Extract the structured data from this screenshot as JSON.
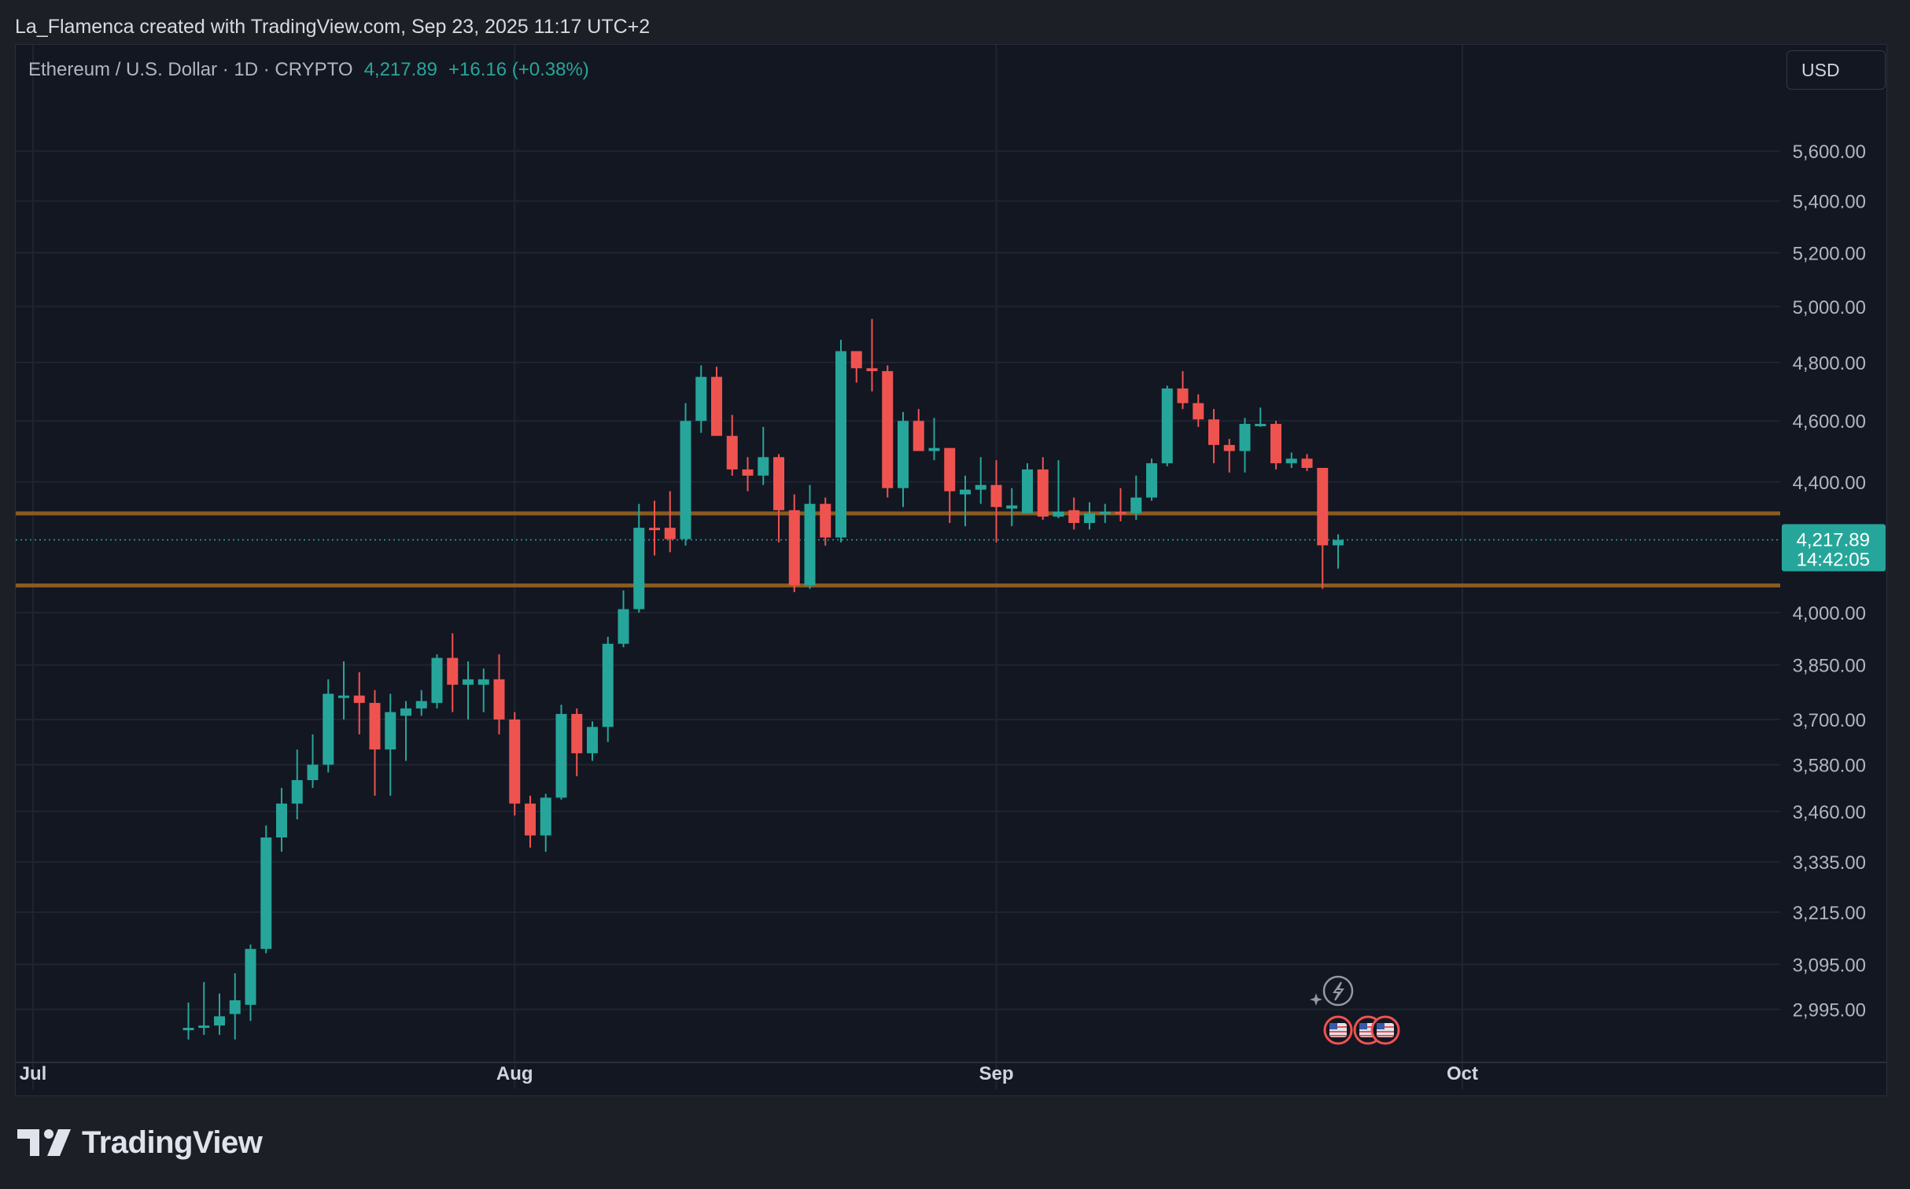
{
  "header": {
    "attribution": "La_Flamenca created with TradingView.com, Sep 23, 2025 11:17 UTC+2"
  },
  "legend": {
    "symbol": "Ethereum / U.S. Dollar · 1D · CRYPTO",
    "price": "4,217.89",
    "change": "+16.16 (+0.38%)"
  },
  "currency": "USD",
  "brand": "TradingView",
  "colors": {
    "up": "#26a69a",
    "down": "#ef5350",
    "level_line": "#8a5a22",
    "background": "#131722",
    "grid": "#1f2431"
  },
  "price_label": {
    "price": "4,217.89",
    "countdown": "14:42:05"
  },
  "chart_data": {
    "type": "candlestick",
    "title": "Ethereum / U.S. Dollar · 1D · CRYPTO",
    "y_scale": "log",
    "y_ticks": [
      "5,600.00",
      "5,400.00",
      "5,200.00",
      "5,000.00",
      "4,800.00",
      "4,600.00",
      "4,400.00",
      "4,000.00",
      "3,850.00",
      "3,700.00",
      "3,580.00",
      "3,460.00",
      "3,335.00",
      "3,215.00",
      "3,095.00",
      "2,995.00"
    ],
    "x_ticks": [
      {
        "label": "Jul",
        "date": "2025-07-01"
      },
      {
        "label": "Aug",
        "date": "2025-08-01"
      },
      {
        "label": "Sep",
        "date": "2025-09-01"
      },
      {
        "label": "Oct",
        "date": "2025-10-01"
      }
    ],
    "horizontal_levels": [
      4300,
      4080
    ],
    "last_price": 4217.89,
    "ohlc": [
      {
        "date": "2025-07-11",
        "o": 2950,
        "h": 3010,
        "l": 2930,
        "c": 2955
      },
      {
        "date": "2025-07-12",
        "o": 2955,
        "h": 3055,
        "l": 2940,
        "c": 2960
      },
      {
        "date": "2025-07-13",
        "o": 2960,
        "h": 3030,
        "l": 2940,
        "c": 2980
      },
      {
        "date": "2025-07-14",
        "o": 2985,
        "h": 3075,
        "l": 2930,
        "c": 3015
      },
      {
        "date": "2025-07-15",
        "o": 3005,
        "h": 3140,
        "l": 2970,
        "c": 3130
      },
      {
        "date": "2025-07-16",
        "o": 3130,
        "h": 3425,
        "l": 3120,
        "c": 3395
      },
      {
        "date": "2025-07-17",
        "o": 3395,
        "h": 3520,
        "l": 3360,
        "c": 3480
      },
      {
        "date": "2025-07-18",
        "o": 3480,
        "h": 3620,
        "l": 3440,
        "c": 3540
      },
      {
        "date": "2025-07-19",
        "o": 3540,
        "h": 3660,
        "l": 3520,
        "c": 3580
      },
      {
        "date": "2025-07-20",
        "o": 3580,
        "h": 3810,
        "l": 3560,
        "c": 3770
      },
      {
        "date": "2025-07-21",
        "o": 3760,
        "h": 3860,
        "l": 3700,
        "c": 3765
      },
      {
        "date": "2025-07-22",
        "o": 3765,
        "h": 3830,
        "l": 3660,
        "c": 3745
      },
      {
        "date": "2025-07-23",
        "o": 3745,
        "h": 3780,
        "l": 3500,
        "c": 3620
      },
      {
        "date": "2025-07-24",
        "o": 3620,
        "h": 3770,
        "l": 3500,
        "c": 3720
      },
      {
        "date": "2025-07-25",
        "o": 3710,
        "h": 3750,
        "l": 3590,
        "c": 3730
      },
      {
        "date": "2025-07-26",
        "o": 3730,
        "h": 3780,
        "l": 3710,
        "c": 3750
      },
      {
        "date": "2025-07-27",
        "o": 3745,
        "h": 3880,
        "l": 3730,
        "c": 3870
      },
      {
        "date": "2025-07-28",
        "o": 3870,
        "h": 3940,
        "l": 3720,
        "c": 3795
      },
      {
        "date": "2025-07-29",
        "o": 3795,
        "h": 3860,
        "l": 3700,
        "c": 3810
      },
      {
        "date": "2025-07-30",
        "o": 3795,
        "h": 3840,
        "l": 3720,
        "c": 3810
      },
      {
        "date": "2025-07-31",
        "o": 3810,
        "h": 3880,
        "l": 3660,
        "c": 3700
      },
      {
        "date": "2025-08-01",
        "o": 3700,
        "h": 3720,
        "l": 3450,
        "c": 3480
      },
      {
        "date": "2025-08-02",
        "o": 3480,
        "h": 3500,
        "l": 3370,
        "c": 3400
      },
      {
        "date": "2025-08-03",
        "o": 3400,
        "h": 3505,
        "l": 3360,
        "c": 3495
      },
      {
        "date": "2025-08-04",
        "o": 3495,
        "h": 3740,
        "l": 3490,
        "c": 3715
      },
      {
        "date": "2025-08-05",
        "o": 3715,
        "h": 3730,
        "l": 3550,
        "c": 3610
      },
      {
        "date": "2025-08-06",
        "o": 3610,
        "h": 3695,
        "l": 3590,
        "c": 3680
      },
      {
        "date": "2025-08-07",
        "o": 3680,
        "h": 3930,
        "l": 3640,
        "c": 3910
      },
      {
        "date": "2025-08-08",
        "o": 3910,
        "h": 4065,
        "l": 3900,
        "c": 4010
      },
      {
        "date": "2025-08-09",
        "o": 4010,
        "h": 4330,
        "l": 4000,
        "c": 4255
      },
      {
        "date": "2025-08-10",
        "o": 4255,
        "h": 4340,
        "l": 4170,
        "c": 4250
      },
      {
        "date": "2025-08-11",
        "o": 4255,
        "h": 4370,
        "l": 4180,
        "c": 4220
      },
      {
        "date": "2025-08-12",
        "o": 4220,
        "h": 4660,
        "l": 4200,
        "c": 4600
      },
      {
        "date": "2025-08-13",
        "o": 4600,
        "h": 4790,
        "l": 4560,
        "c": 4750
      },
      {
        "date": "2025-08-14",
        "o": 4750,
        "h": 4785,
        "l": 4550,
        "c": 4550
      },
      {
        "date": "2025-08-15",
        "o": 4550,
        "h": 4620,
        "l": 4420,
        "c": 4440
      },
      {
        "date": "2025-08-16",
        "o": 4440,
        "h": 4480,
        "l": 4370,
        "c": 4420
      },
      {
        "date": "2025-08-17",
        "o": 4420,
        "h": 4580,
        "l": 4390,
        "c": 4480
      },
      {
        "date": "2025-08-18",
        "o": 4480,
        "h": 4490,
        "l": 4210,
        "c": 4310
      },
      {
        "date": "2025-08-19",
        "o": 4310,
        "h": 4360,
        "l": 4060,
        "c": 4080
      },
      {
        "date": "2025-08-20",
        "o": 4080,
        "h": 4390,
        "l": 4070,
        "c": 4330
      },
      {
        "date": "2025-08-21",
        "o": 4330,
        "h": 4350,
        "l": 4200,
        "c": 4225
      },
      {
        "date": "2025-08-22",
        "o": 4225,
        "h": 4880,
        "l": 4210,
        "c": 4840
      },
      {
        "date": "2025-08-23",
        "o": 4840,
        "h": 4840,
        "l": 4730,
        "c": 4780
      },
      {
        "date": "2025-08-24",
        "o": 4780,
        "h": 4955,
        "l": 4700,
        "c": 4770
      },
      {
        "date": "2025-08-25",
        "o": 4770,
        "h": 4790,
        "l": 4350,
        "c": 4380
      },
      {
        "date": "2025-08-26",
        "o": 4380,
        "h": 4630,
        "l": 4320,
        "c": 4600
      },
      {
        "date": "2025-08-27",
        "o": 4600,
        "h": 4640,
        "l": 4500,
        "c": 4500
      },
      {
        "date": "2025-08-28",
        "o": 4500,
        "h": 4610,
        "l": 4470,
        "c": 4510
      },
      {
        "date": "2025-08-29",
        "o": 4510,
        "h": 4510,
        "l": 4270,
        "c": 4370
      },
      {
        "date": "2025-08-30",
        "o": 4360,
        "h": 4420,
        "l": 4260,
        "c": 4375
      },
      {
        "date": "2025-08-31",
        "o": 4375,
        "h": 4480,
        "l": 4330,
        "c": 4390
      },
      {
        "date": "2025-09-01",
        "o": 4390,
        "h": 4470,
        "l": 4210,
        "c": 4320
      },
      {
        "date": "2025-09-02",
        "o": 4315,
        "h": 4380,
        "l": 4260,
        "c": 4325
      },
      {
        "date": "2025-09-03",
        "o": 4300,
        "h": 4460,
        "l": 4300,
        "c": 4440
      },
      {
        "date": "2025-09-04",
        "o": 4440,
        "h": 4480,
        "l": 4280,
        "c": 4290
      },
      {
        "date": "2025-09-05",
        "o": 4290,
        "h": 4470,
        "l": 4285,
        "c": 4305
      },
      {
        "date": "2025-09-06",
        "o": 4310,
        "h": 4350,
        "l": 4250,
        "c": 4270
      },
      {
        "date": "2025-09-07",
        "o": 4270,
        "h": 4335,
        "l": 4250,
        "c": 4300
      },
      {
        "date": "2025-09-08",
        "o": 4300,
        "h": 4330,
        "l": 4270,
        "c": 4305
      },
      {
        "date": "2025-09-09",
        "o": 4305,
        "h": 4380,
        "l": 4275,
        "c": 4300
      },
      {
        "date": "2025-09-10",
        "o": 4300,
        "h": 4420,
        "l": 4280,
        "c": 4350
      },
      {
        "date": "2025-09-11",
        "o": 4350,
        "h": 4475,
        "l": 4340,
        "c": 4460
      },
      {
        "date": "2025-09-12",
        "o": 4460,
        "h": 4720,
        "l": 4450,
        "c": 4710
      },
      {
        "date": "2025-09-13",
        "o": 4710,
        "h": 4770,
        "l": 4640,
        "c": 4660
      },
      {
        "date": "2025-09-14",
        "o": 4660,
        "h": 4690,
        "l": 4580,
        "c": 4605
      },
      {
        "date": "2025-09-15",
        "o": 4605,
        "h": 4640,
        "l": 4460,
        "c": 4520
      },
      {
        "date": "2025-09-16",
        "o": 4520,
        "h": 4540,
        "l": 4430,
        "c": 4500
      },
      {
        "date": "2025-09-17",
        "o": 4500,
        "h": 4610,
        "l": 4430,
        "c": 4590
      },
      {
        "date": "2025-09-18",
        "o": 4590,
        "h": 4645,
        "l": 4580,
        "c": 4590
      },
      {
        "date": "2025-09-19",
        "o": 4590,
        "h": 4600,
        "l": 4440,
        "c": 4460
      },
      {
        "date": "2025-09-20",
        "o": 4460,
        "h": 4495,
        "l": 4445,
        "c": 4475
      },
      {
        "date": "2025-09-21",
        "o": 4475,
        "h": 4490,
        "l": 4435,
        "c": 4445
      },
      {
        "date": "2025-09-22",
        "o": 4445,
        "h": 4445,
        "l": 4070,
        "c": 4201
      },
      {
        "date": "2025-09-23",
        "o": 4201,
        "h": 4235,
        "l": 4130,
        "c": 4218
      }
    ]
  }
}
